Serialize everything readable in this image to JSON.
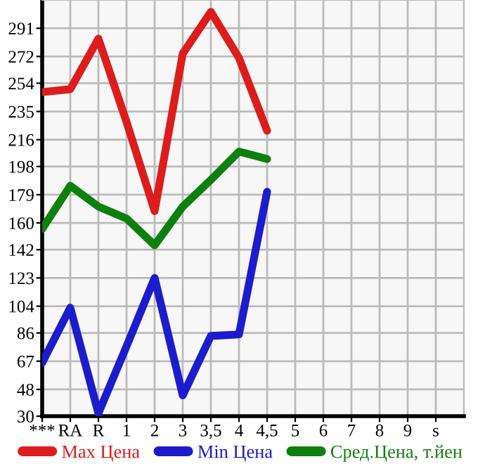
{
  "chart_data": {
    "type": "line",
    "categories": [
      "***",
      "RA",
      "R",
      "1",
      "2",
      "3",
      "3,5",
      "4",
      "4,5",
      "5",
      "6",
      "7",
      "8",
      "9",
      "s"
    ],
    "series": [
      {
        "name": "Max Цена",
        "color": "#dd1c1c",
        "values": [
          248,
          250,
          284,
          228,
          168,
          274,
          302,
          271,
          222,
          null,
          null,
          null,
          null,
          null,
          null
        ]
      },
      {
        "name": "Min Цена",
        "color": "#1c1ccc",
        "values": [
          66,
          103,
          32,
          77,
          123,
          44,
          84,
          85,
          181,
          null,
          null,
          null,
          null,
          null,
          null
        ]
      },
      {
        "name": "Сред.Цена, т.йен",
        "color": "#0e800e",
        "values": [
          156,
          185,
          171,
          163,
          145,
          171,
          189,
          208,
          203,
          null,
          null,
          null,
          null,
          null,
          null
        ]
      }
    ],
    "ylim": [
      30,
      310
    ],
    "yticks": [
      30,
      48,
      67,
      86,
      104,
      123,
      142,
      160,
      179,
      198,
      216,
      235,
      254,
      272,
      291
    ],
    "grid": true,
    "legend": "bottom",
    "marker": "none",
    "line_style": "solid"
  }
}
